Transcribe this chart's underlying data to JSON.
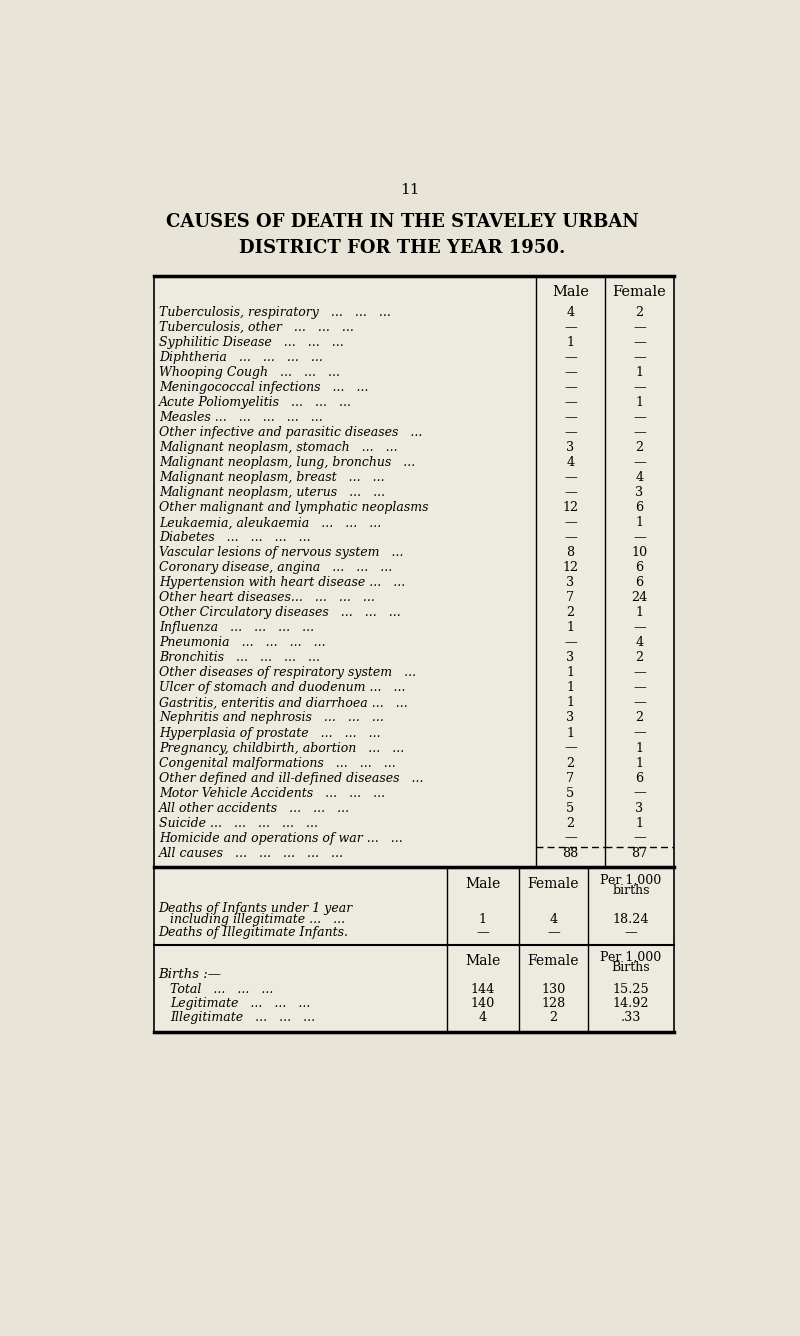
{
  "page_number": "11",
  "title_line1": "CAUSES OF DEATH IN THE STAVELEY URBAN",
  "title_line2": "DISTRICT FOR THE YEAR 1950.",
  "bg_color": "#e8e4d8",
  "table_bg": "#edeae0",
  "col_header_male": "Male",
  "col_header_female": "Female",
  "rows": [
    {
      "cause": "Tuberculosis, respiratory   ...   ...   ...",
      "male": "4",
      "female": "2"
    },
    {
      "cause": "Tuberculosis, other   ...   ...   ...",
      "male": "—",
      "female": "—"
    },
    {
      "cause": "Syphilitic Disease   ...   ...   ...",
      "male": "1",
      "female": "—"
    },
    {
      "cause": "Diphtheria   ...   ...   ...   ...",
      "male": "—",
      "female": "—"
    },
    {
      "cause": "Whooping Cough   ...   ...   ...",
      "male": "—",
      "female": "1"
    },
    {
      "cause": "Meningococcal infections   ...   ...",
      "male": "—",
      "female": "—"
    },
    {
      "cause": "Acute Poliomyelitis   ...   ...   ...",
      "male": "—",
      "female": "1"
    },
    {
      "cause": "Measles ...   ...   ...   ...   ...",
      "male": "—",
      "female": "—"
    },
    {
      "cause": "Other infective and parasitic diseases   ...",
      "male": "—",
      "female": "—"
    },
    {
      "cause": "Malignant neoplasm, stomach   ...   ...",
      "male": "3",
      "female": "2"
    },
    {
      "cause": "Malignant neoplasm, lung, bronchus   ...",
      "male": "4",
      "female": "—"
    },
    {
      "cause": "Malignant neoplasm, breast   ...   ...",
      "male": "—",
      "female": "4"
    },
    {
      "cause": "Malignant neoplasm, uterus   ...   ...",
      "male": "—",
      "female": "3"
    },
    {
      "cause": "Other malignant and lymphatic neoplasms",
      "male": "12",
      "female": "6"
    },
    {
      "cause": "Leukaemia, aleukaemia   ...   ...   ...",
      "male": "—",
      "female": "1"
    },
    {
      "cause": "Diabetes   ...   ...   ...   ...",
      "male": "—",
      "female": "—"
    },
    {
      "cause": "Vascular lesions of nervous system   ...",
      "male": "8",
      "female": "10"
    },
    {
      "cause": "Coronary disease, angina   ...   ...   ...",
      "male": "12",
      "female": "6"
    },
    {
      "cause": "Hypertension with heart disease ...   ...",
      "male": "3",
      "female": "6"
    },
    {
      "cause": "Other heart diseases...   ...   ...   ...",
      "male": "7",
      "female": "24"
    },
    {
      "cause": "Other Circulatory diseases   ...   ...   ...",
      "male": "2",
      "female": "1"
    },
    {
      "cause": "Influenza   ...   ...   ...   ...",
      "male": "1",
      "female": "—"
    },
    {
      "cause": "Pneumonia   ...   ...   ...   ...",
      "male": "—",
      "female": "4"
    },
    {
      "cause": "Bronchitis   ...   ...   ...   ...",
      "male": "3",
      "female": "2"
    },
    {
      "cause": "Other diseases of respiratory system   ...",
      "male": "1",
      "female": "—"
    },
    {
      "cause": "Ulcer of stomach and duodenum ...   ...",
      "male": "1",
      "female": "—"
    },
    {
      "cause": "Gastritis, enteritis and diarrhoea ...   ...",
      "male": "1",
      "female": "—"
    },
    {
      "cause": "Nephritis and nephrosis   ...   ...   ...",
      "male": "3",
      "female": "2"
    },
    {
      "cause": "Hyperplasia of prostate   ...   ...   ...",
      "male": "1",
      "female": "—"
    },
    {
      "cause": "Pregnancy, childbirth, abortion   ...   ...",
      "male": "—",
      "female": "1"
    },
    {
      "cause": "Congenital malformations   ...   ...   ...",
      "male": "2",
      "female": "1"
    },
    {
      "cause": "Other defined and ill-defined diseases   ...",
      "male": "7",
      "female": "6"
    },
    {
      "cause": "Motor Vehicle Accidents   ...   ...   ...",
      "male": "5",
      "female": "—"
    },
    {
      "cause": "All other accidents   ...   ...   ...",
      "male": "5",
      "female": "3"
    },
    {
      "cause": "Suicide ...   ...   ...   ...   ...",
      "male": "2",
      "female": "1"
    },
    {
      "cause": "Homicide and operations of war ...   ...",
      "male": "—",
      "female": "—"
    }
  ],
  "all_causes_label": "All causes   ...   ...   ...   ...   ...",
  "all_causes_male": "88",
  "all_causes_female": "87",
  "bottom_section": {
    "header1a": "Deaths of Infants under 1 year",
    "header1b": "   including illegitimate ...   ...",
    "header2": "Deaths of Illegitimate Infants.",
    "col_male": "Male",
    "col_female": "Female",
    "col_per1": "Per 1,000",
    "col_per2": "births",
    "infant_male": "1",
    "infant_female": "4",
    "infant_per": "18.24",
    "illeg_male": "—",
    "illeg_female": "—",
    "illeg_per": "—",
    "births_header": "Births :—",
    "births_col_per1": "Per 1,000",
    "births_col_per2": "Births",
    "total_label": "Total   ...   ...   ...",
    "total_male": "144",
    "total_female": "130",
    "total_per": "15.25",
    "legit_label": "Legitimate   ...   ...   ...",
    "legit_male": "140",
    "legit_female": "128",
    "legit_per": "14.92",
    "illeg_label": "Illegitimate   ...   ...   ...",
    "illeg2_male": "4",
    "illeg2_female": "2",
    "illeg2_per": ".33"
  }
}
